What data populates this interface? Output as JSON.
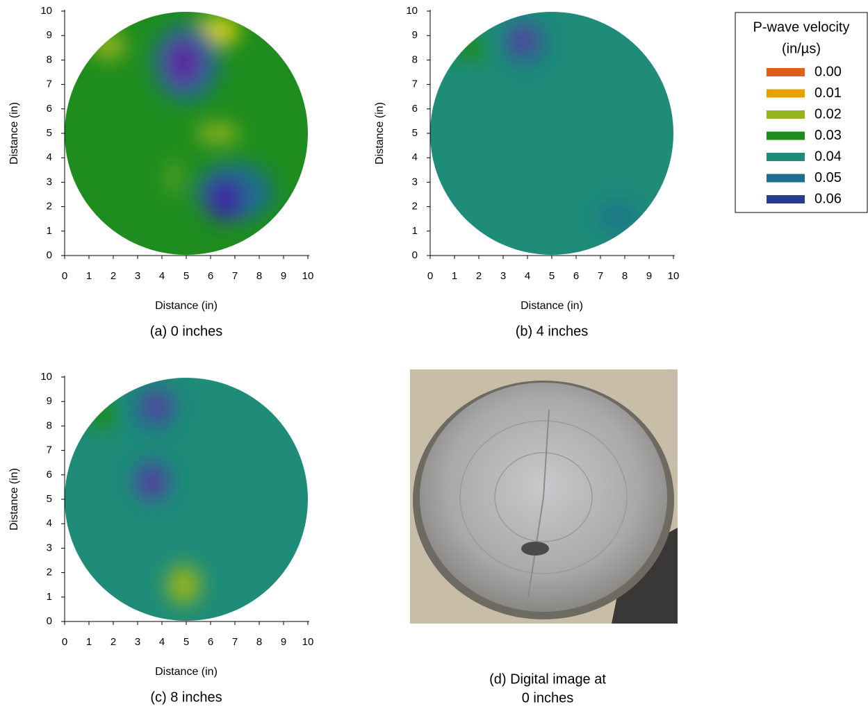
{
  "chart_data": [
    {
      "type": "contour",
      "xlabel": "Distance (in)",
      "ylabel": "Distance (in)",
      "caption": "(a) 0 inches",
      "xlim": [
        0,
        10
      ],
      "ylim": [
        0,
        10
      ],
      "xticks": [
        0,
        1,
        2,
        3,
        4,
        5,
        6,
        7,
        8,
        9,
        10
      ],
      "yticks": [
        0,
        1,
        2,
        3,
        4,
        5,
        6,
        7,
        8,
        9,
        10
      ],
      "field_color": "#1e8c1e",
      "anomalies": [
        {
          "x": 1.8,
          "y": 8.6,
          "rx": 0.7,
          "ry": 0.6,
          "color": "#94b41e"
        },
        {
          "x": 6.3,
          "y": 9.2,
          "rx": 0.9,
          "ry": 0.6,
          "color": "#d8d000"
        },
        {
          "x": 5.0,
          "y": 7.9,
          "rx": 1.4,
          "ry": 1.6,
          "color": "#1e6e8c"
        },
        {
          "x": 4.9,
          "y": 7.9,
          "rx": 0.8,
          "ry": 1.0,
          "color": "#5a2aa0"
        },
        {
          "x": 6.3,
          "y": 5.0,
          "rx": 0.9,
          "ry": 0.4,
          "color": "#94b41e"
        },
        {
          "x": 7.0,
          "y": 2.6,
          "rx": 1.6,
          "ry": 1.2,
          "color": "#1e6e8c"
        },
        {
          "x": 6.6,
          "y": 2.3,
          "rx": 0.8,
          "ry": 0.9,
          "color": "#3a2aa0"
        },
        {
          "x": 4.5,
          "y": 3.2,
          "rx": 0.3,
          "ry": 0.8,
          "color": "#5aa020"
        }
      ]
    },
    {
      "type": "contour",
      "xlabel": "Distance (in)",
      "ylabel": "Distance (in)",
      "caption": "(b) 4 inches",
      "xlim": [
        0,
        10
      ],
      "ylim": [
        0,
        10
      ],
      "xticks": [
        0,
        1,
        2,
        3,
        4,
        5,
        6,
        7,
        8,
        9,
        10
      ],
      "yticks": [
        0,
        1,
        2,
        3,
        4,
        5,
        6,
        7,
        8,
        9,
        10
      ],
      "field_color": "#1e8c78",
      "anomalies": [
        {
          "x": 1.6,
          "y": 8.5,
          "rx": 0.8,
          "ry": 0.5,
          "color": "#1e8c1e"
        },
        {
          "x": 3.9,
          "y": 8.7,
          "rx": 1.0,
          "ry": 1.0,
          "color": "#1e6e8c"
        },
        {
          "x": 3.8,
          "y": 8.8,
          "rx": 0.5,
          "ry": 0.5,
          "color": "#5a2aa0"
        },
        {
          "x": 7.7,
          "y": 1.6,
          "rx": 0.9,
          "ry": 0.7,
          "color": "#1e7888"
        }
      ]
    },
    {
      "type": "contour",
      "xlabel": "Distance (in)",
      "ylabel": "Distance (in)",
      "caption": "(c) 8 inches",
      "xlim": [
        0,
        10
      ],
      "ylim": [
        0,
        10
      ],
      "xticks": [
        0,
        1,
        2,
        3,
        4,
        5,
        6,
        7,
        8,
        9,
        10
      ],
      "yticks": [
        0,
        1,
        2,
        3,
        4,
        5,
        6,
        7,
        8,
        9,
        10
      ],
      "field_color": "#1e8c78",
      "anomalies": [
        {
          "x": 1.5,
          "y": 8.5,
          "rx": 0.7,
          "ry": 0.6,
          "color": "#1e8c1e"
        },
        {
          "x": 3.7,
          "y": 8.7,
          "rx": 1.0,
          "ry": 1.0,
          "color": "#1e6e8c"
        },
        {
          "x": 3.8,
          "y": 8.8,
          "rx": 0.5,
          "ry": 0.5,
          "color": "#5a2aa0"
        },
        {
          "x": 3.6,
          "y": 5.8,
          "rx": 0.9,
          "ry": 1.0,
          "color": "#1e6e8c"
        },
        {
          "x": 3.6,
          "y": 5.7,
          "rx": 0.5,
          "ry": 0.6,
          "color": "#5a2aa0"
        },
        {
          "x": 4.9,
          "y": 1.5,
          "rx": 0.7,
          "ry": 0.8,
          "color": "#94b41e"
        }
      ]
    }
  ],
  "legend": {
    "title": "P-wave velocity",
    "units": "(in/µs)",
    "entries": [
      {
        "label": "0.00",
        "color": "#e0601a"
      },
      {
        "label": "0.01",
        "color": "#e6a000"
      },
      {
        "label": "0.02",
        "color": "#94b41e"
      },
      {
        "label": "0.03",
        "color": "#1e8c1e"
      },
      {
        "label": "0.04",
        "color": "#1e8c78"
      },
      {
        "label": "0.05",
        "color": "#1e6e8c"
      },
      {
        "label": "0.06",
        "color": "#283c8c"
      }
    ]
  },
  "image_panel": {
    "caption_lines": [
      "(d) Digital image at",
      "0 inches"
    ]
  }
}
